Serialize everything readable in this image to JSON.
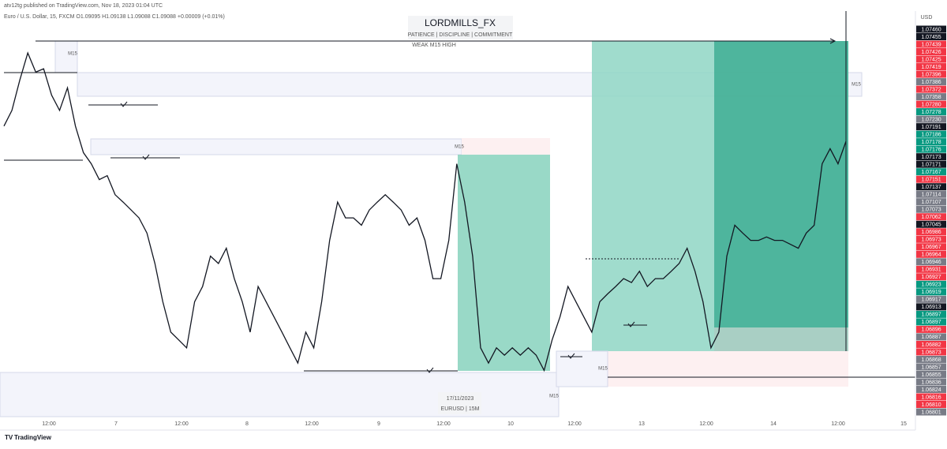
{
  "header": {
    "published": "atv12tg published on TradingView.com, Nov 18, 2023 01:04 UTC",
    "symbol": "Euro / U.S. Dollar, 15, FXCM  O1.09095  H1.09138  L1.09088  C1.09088  +0.00009 (+0.01%)"
  },
  "watermark": {
    "title": "LORDMILLS_FX",
    "subtitle": "PATIENCE | DISCIPLINE | COMMITMENT",
    "date": "17/11/2023",
    "pair": "EURUSD | 15M"
  },
  "annotations": [
    "WEAK M15 HIGH",
    "M15",
    "M15",
    "M15",
    "M15",
    "M15"
  ],
  "chart": {
    "type": "line",
    "ylim": [
      1.06801,
      1.0746
    ],
    "values": [
      1.07306,
      1.07334,
      1.07388,
      1.07436,
      1.07402,
      1.07408,
      1.07361,
      1.07334,
      1.07374,
      1.07306,
      1.07259,
      1.07239,
      1.07211,
      1.07218,
      1.07184,
      1.07171,
      1.07157,
      1.07143,
      1.07116,
      1.07062,
      1.06994,
      1.0694,
      1.06926,
      1.06912,
      1.06994,
      1.07021,
      1.07075,
      1.07062,
      1.07089,
      1.07035,
      1.06994,
      1.0694,
      1.07021,
      1.06994,
      1.06967,
      1.0694,
      1.06912,
      1.06885,
      1.0694,
      1.06912,
      1.06994,
      1.07103,
      1.07171,
      1.07143,
      1.07143,
      1.0713,
      1.07157,
      1.07171,
      1.07184,
      1.07171,
      1.07157,
      1.0713,
      1.07143,
      1.07103,
      1.07035,
      1.07035,
      1.07103,
      1.07239,
      1.07171,
      1.07075,
      1.06912,
      1.06885,
      1.06912,
      1.06899,
      1.06912,
      1.06899,
      1.06912,
      1.06899,
      1.06872,
      1.06926,
      1.06967,
      1.07021,
      1.06994,
      1.06967,
      1.0694,
      1.06994,
      1.07008,
      1.07021,
      1.07035,
      1.07028,
      1.07048,
      1.07021,
      1.07035,
      1.07035,
      1.07048,
      1.07062,
      1.07089,
      1.07048,
      1.06994,
      1.06912,
      1.0694,
      1.07075,
      1.0713,
      1.07116,
      1.07103,
      1.07103,
      1.07109,
      1.07103,
      1.07103,
      1.07096,
      1.07089,
      1.07116,
      1.0713,
      1.07239,
      1.07266,
      1.07239,
      1.07279
    ],
    "color": "#131722"
  },
  "price_scale": {
    "currency": "USD",
    "labels": [
      {
        "text": "1.07460",
        "color": "#131722"
      },
      {
        "text": "1.07455",
        "color": "#131722"
      },
      {
        "text": "1.07439",
        "color": "#f23645"
      },
      {
        "text": "1.07426",
        "color": "#f23645"
      },
      {
        "text": "1.07425",
        "color": "#f23645"
      },
      {
        "text": "1.07419",
        "color": "#f23645"
      },
      {
        "text": "1.07396",
        "color": "#f23645"
      },
      {
        "text": "1.07386",
        "color": "#787b86"
      },
      {
        "text": "1.07372",
        "color": "#f23645"
      },
      {
        "text": "1.07358",
        "color": "#787b86"
      },
      {
        "text": "1.07280",
        "color": "#f23645"
      },
      {
        "text": "1.07278",
        "color": "#089981"
      },
      {
        "text": "1.07230",
        "color": "#787b86"
      },
      {
        "text": "1.07191",
        "color": "#131722"
      },
      {
        "text": "1.07186",
        "color": "#089981"
      },
      {
        "text": "1.07178",
        "color": "#089981"
      },
      {
        "text": "1.07176",
        "color": "#089981"
      },
      {
        "text": "1.07173",
        "color": "#131722"
      },
      {
        "text": "1.07171",
        "color": "#131722"
      },
      {
        "text": "1.07167",
        "color": "#089981"
      },
      {
        "text": "1.07151",
        "color": "#f23645"
      },
      {
        "text": "1.07137",
        "color": "#131722"
      },
      {
        "text": "1.07114",
        "color": "#787b86"
      },
      {
        "text": "1.07107",
        "color": "#787b86"
      },
      {
        "text": "1.07073",
        "color": "#787b86"
      },
      {
        "text": "1.07062",
        "color": "#f23645"
      },
      {
        "text": "1.07045",
        "color": "#131722"
      },
      {
        "text": "1.06986",
        "color": "#f23645"
      },
      {
        "text": "1.06973",
        "color": "#f23645"
      },
      {
        "text": "1.06967",
        "color": "#f23645"
      },
      {
        "text": "1.06964",
        "color": "#f23645"
      },
      {
        "text": "1.06946",
        "color": "#787b86"
      },
      {
        "text": "1.06931",
        "color": "#f23645"
      },
      {
        "text": "1.06927",
        "color": "#f23645"
      },
      {
        "text": "1.06923",
        "color": "#089981"
      },
      {
        "text": "1.06919",
        "color": "#089981"
      },
      {
        "text": "1.06917",
        "color": "#787b86"
      },
      {
        "text": "1.06913",
        "color": "#131722"
      },
      {
        "text": "1.06897",
        "color": "#089981"
      },
      {
        "text": "1.06897",
        "color": "#089981"
      },
      {
        "text": "1.06896",
        "color": "#f23645"
      },
      {
        "text": "1.06887",
        "color": "#787b86"
      },
      {
        "text": "1.06882",
        "color": "#f23645"
      },
      {
        "text": "1.06873",
        "color": "#f23645"
      },
      {
        "text": "1.06868",
        "color": "#787b86"
      },
      {
        "text": "1.06857",
        "color": "#787b86"
      },
      {
        "text": "1.06855",
        "color": "#787b86"
      },
      {
        "text": "1.06836",
        "color": "#787b86"
      },
      {
        "text": "1.06824",
        "color": "#787b86"
      },
      {
        "text": "1.06816",
        "color": "#f23645"
      },
      {
        "text": "1.06810",
        "color": "#f23645"
      },
      {
        "text": "1.06801",
        "color": "#787b86"
      }
    ]
  },
  "time_axis": [
    "12:00",
    "7",
    "12:00",
    "8",
    "12:00",
    "9",
    "12:00",
    "10",
    "12:00",
    "13",
    "12:00",
    "14",
    "12:00",
    "15"
  ],
  "footer": "TradingView"
}
